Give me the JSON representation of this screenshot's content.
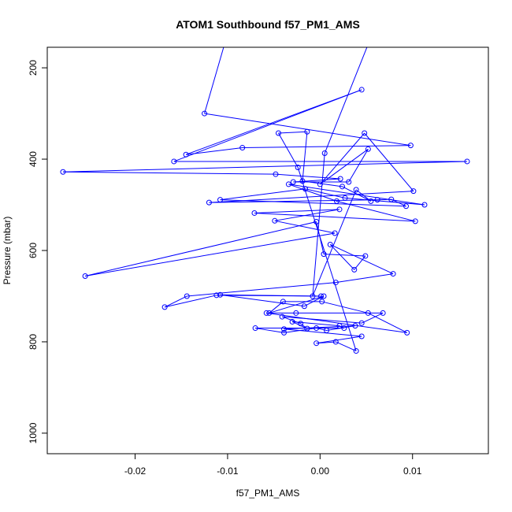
{
  "chart_data": {
    "type": "scatter",
    "title": "ATOM1 Southbound f57_PM1_AMS",
    "xlabel": "f57_PM1_AMS",
    "ylabel": "Pressure (mbar)",
    "xlim": [
      -0.0295,
      0.0182
    ],
    "ylim": [
      1045,
      155
    ],
    "y_reversed": true,
    "x_ticks": [
      -0.02,
      -0.01,
      0.0,
      0.01
    ],
    "x_tick_labels": [
      "-0.02",
      "-0.01",
      "0.00",
      "0.01"
    ],
    "y_ticks": [
      200,
      400,
      600,
      800,
      1000
    ],
    "y_tick_labels": [
      "200",
      "400",
      "600",
      "800",
      "1000"
    ],
    "series_color": "#0000ff",
    "connected": true,
    "points": [
      {
        "x": -0.0091,
        "y": 62
      },
      {
        "x": -0.0125,
        "y": 300
      },
      {
        "x": 0.0098,
        "y": 370
      },
      {
        "x": -0.0084,
        "y": 375
      },
      {
        "x": -0.0145,
        "y": 390
      },
      {
        "x": 0.0045,
        "y": 248
      },
      {
        "x": -0.0158,
        "y": 405
      },
      {
        "x": 0.0159,
        "y": 405
      },
      {
        "x": -0.0278,
        "y": 428
      },
      {
        "x": -0.0048,
        "y": 433
      },
      {
        "x": 0.0022,
        "y": 443
      },
      {
        "x": -0.0029,
        "y": 450
      },
      {
        "x": 0.0031,
        "y": 450
      },
      {
        "x": 0.0052,
        "y": 378
      },
      {
        "x": 0.0,
        "y": 455
      },
      {
        "x": 0.0048,
        "y": 343
      },
      {
        "x": 0.0101,
        "y": 470
      },
      {
        "x": -0.012,
        "y": 495
      },
      {
        "x": 0.0062,
        "y": 489
      },
      {
        "x": 0.0077,
        "y": 488
      },
      {
        "x": 0.0093,
        "y": 503
      },
      {
        "x": -0.0108,
        "y": 489
      },
      {
        "x": -0.0016,
        "y": 465
      },
      {
        "x": 0.0027,
        "y": 485
      },
      {
        "x": 0.0113,
        "y": 500
      },
      {
        "x": -0.0034,
        "y": 455
      },
      {
        "x": 0.0018,
        "y": 492
      },
      {
        "x": 0.0103,
        "y": 536
      },
      {
        "x": -0.0071,
        "y": 518
      },
      {
        "x": 0.0021,
        "y": 510
      },
      {
        "x": -0.0049,
        "y": 535
      },
      {
        "x": 0.0016,
        "y": 562
      },
      {
        "x": -0.0254,
        "y": 656
      },
      {
        "x": -0.0004,
        "y": 537
      },
      {
        "x": 0.0004,
        "y": 608
      },
      {
        "x": 0.0049,
        "y": 612
      },
      {
        "x": 0.0037,
        "y": 642
      },
      {
        "x": 0.0011,
        "y": 587
      },
      {
        "x": 0.0079,
        "y": 651
      },
      {
        "x": 0.0017,
        "y": 670
      },
      {
        "x": -0.0144,
        "y": 700
      },
      {
        "x": -0.0168,
        "y": 724
      },
      {
        "x": -0.0112,
        "y": 698
      },
      {
        "x": 0.0001,
        "y": 700
      },
      {
        "x": -0.0108,
        "y": 697
      },
      {
        "x": -0.0017,
        "y": 722
      },
      {
        "x": 0.0004,
        "y": 700
      },
      {
        "x": -0.0055,
        "y": 737
      },
      {
        "x": -0.004,
        "y": 712
      },
      {
        "x": 0.0002,
        "y": 712
      },
      {
        "x": 0.0052,
        "y": 737
      },
      {
        "x": 0.0094,
        "y": 780
      },
      {
        "x": -0.0058,
        "y": 737
      },
      {
        "x": -0.0026,
        "y": 737
      },
      {
        "x": 0.0068,
        "y": 737
      },
      {
        "x": 0.0045,
        "y": 759
      },
      {
        "x": -0.0041,
        "y": 745
      },
      {
        "x": -0.0021,
        "y": 760
      },
      {
        "x": -0.0014,
        "y": 771
      },
      {
        "x": -0.003,
        "y": 756
      },
      {
        "x": 0.0021,
        "y": 765
      },
      {
        "x": 0.0026,
        "y": 770
      },
      {
        "x": -0.007,
        "y": 770
      },
      {
        "x": -0.0039,
        "y": 780
      },
      {
        "x": -0.0004,
        "y": 770
      },
      {
        "x": 0.0007,
        "y": 775
      },
      {
        "x": 0.0038,
        "y": 765
      },
      {
        "x": -0.0039,
        "y": 772
      },
      {
        "x": 0.0045,
        "y": 788
      },
      {
        "x": -0.0004,
        "y": 803
      },
      {
        "x": 0.0017,
        "y": 800
      },
      {
        "x": 0.0039,
        "y": 820
      },
      {
        "x": -0.0024,
        "y": 418
      },
      {
        "x": -0.0045,
        "y": 343
      },
      {
        "x": -0.0014,
        "y": 340
      },
      {
        "x": -0.0019,
        "y": 448
      },
      {
        "x": 0.0024,
        "y": 460
      },
      {
        "x": 0.0055,
        "y": 492
      },
      {
        "x": 0.0039,
        "y": 467
      },
      {
        "x": -0.0008,
        "y": 700
      },
      {
        "x": 0.0005,
        "y": 387
      },
      {
        "x": 0.0069,
        "y": 62
      }
    ]
  }
}
